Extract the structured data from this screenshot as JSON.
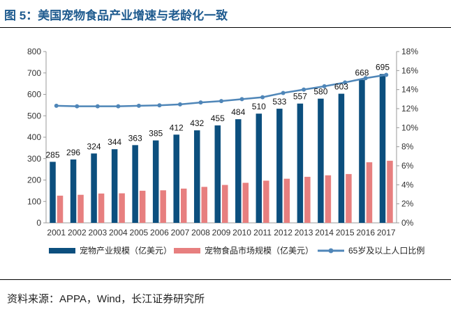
{
  "figure_title": "图 5：美国宠物食品产业增速与老龄化一致",
  "source": "资料来源：APPA，Wind，长江证券研究所",
  "colors": {
    "bar_industry": "#0c4f7e",
    "bar_food": "#e77f7f",
    "line_aging": "#4f86b8",
    "title": "#1f5b8f"
  },
  "chart_data": {
    "type": "bar+line",
    "title": "",
    "categories": [
      "2001",
      "2002",
      "2003",
      "2004",
      "2005",
      "2006",
      "2007",
      "2008",
      "2009",
      "2010",
      "2011",
      "2012",
      "2013",
      "2014",
      "2015",
      "2016",
      "2017"
    ],
    "series": [
      {
        "name": "宠物产业规模（亿美元）",
        "type": "bar",
        "axis": "left",
        "values": [
          285,
          296,
          324,
          344,
          363,
          385,
          412,
          432,
          455,
          484,
          510,
          533,
          557,
          580,
          603,
          668,
          695
        ]
      },
      {
        "name": "宠物食品市场规模（亿美元）",
        "type": "bar",
        "axis": "left",
        "values": [
          127,
          131,
          137,
          138,
          150,
          152,
          160,
          168,
          177,
          187,
          197,
          206,
          215,
          222,
          228,
          283,
          290
        ]
      },
      {
        "name": "65岁及以上人口比例",
        "type": "line",
        "axis": "right",
        "values": [
          12.3,
          12.25,
          12.25,
          12.25,
          12.3,
          12.35,
          12.45,
          12.65,
          12.8,
          13.0,
          13.2,
          13.65,
          14.0,
          14.35,
          14.75,
          15.2,
          15.55
        ]
      }
    ],
    "y_left": {
      "min": 0,
      "max": 800,
      "step": 100,
      "ticks": [
        "0",
        "100",
        "200",
        "300",
        "400",
        "500",
        "600",
        "700",
        "800"
      ]
    },
    "y_right": {
      "min": 0,
      "max": 18,
      "step": 2,
      "ticks": [
        "0%",
        "2%",
        "4%",
        "6%",
        "8%",
        "10%",
        "12%",
        "14%",
        "16%",
        "18%"
      ]
    },
    "legend_position": "bottom",
    "grid": false
  }
}
